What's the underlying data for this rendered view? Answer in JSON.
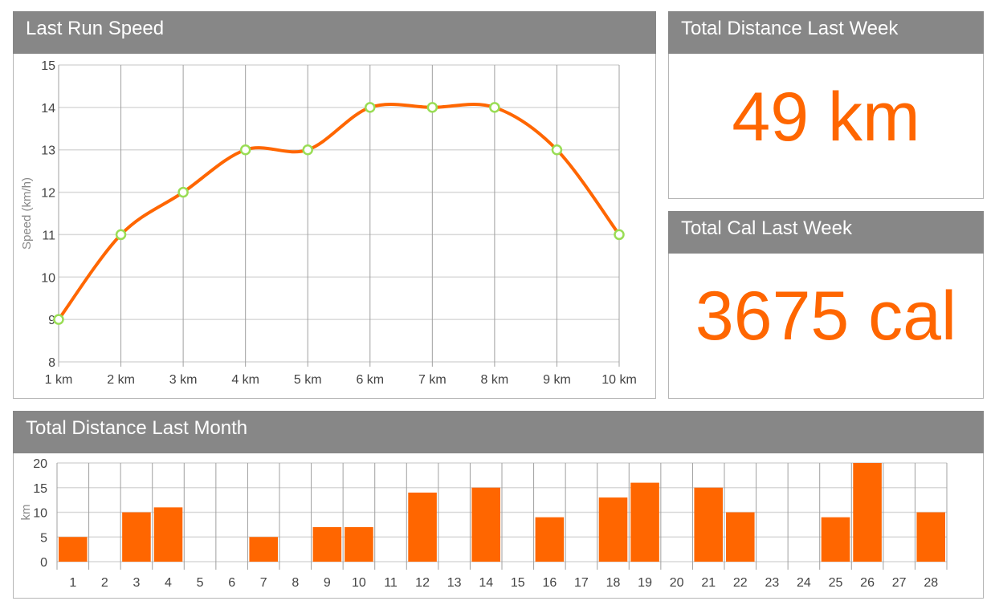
{
  "panels": {
    "speed_title": "Last Run Speed",
    "week_title": "Total Distance Last Week",
    "week_value": "49 km",
    "cal_title": "Total Cal Last Week",
    "cal_value": "3675 cal",
    "month_title": "Total Distance Last Month"
  },
  "colors": {
    "header_bg": "#878787",
    "accent": "#ff6600",
    "point_stroke": "#99dd55",
    "grid": "#d9d9d9",
    "vgrid": "#a0a0a0"
  },
  "chart_data": [
    {
      "type": "line",
      "title": "Last Run Speed",
      "categories": [
        "1 km",
        "2 km",
        "3 km",
        "4 km",
        "5 km",
        "6 km",
        "7 km",
        "8 km",
        "9 km",
        "10 km"
      ],
      "values": [
        9,
        11,
        12,
        13,
        13,
        14,
        14,
        14,
        13,
        11
      ],
      "ylabel": "Speed (km/h)",
      "xlabel": "",
      "ylim": [
        8,
        15
      ],
      "yticks": [
        8,
        9,
        10,
        11,
        12,
        13,
        14,
        15
      ],
      "smooth": true,
      "grid": true,
      "legend": "none"
    },
    {
      "type": "bar",
      "title": "Total Distance Last Month",
      "categories": [
        "1",
        "2",
        "3",
        "4",
        "5",
        "6",
        "7",
        "8",
        "9",
        "10",
        "11",
        "12",
        "13",
        "14",
        "15",
        "16",
        "17",
        "18",
        "19",
        "20",
        "21",
        "22",
        "23",
        "24",
        "25",
        "26",
        "27",
        "28"
      ],
      "values": [
        5,
        0,
        10,
        11,
        0,
        0,
        5,
        0,
        7,
        7,
        0,
        14,
        0,
        15,
        0,
        9,
        0,
        13,
        16,
        0,
        15,
        10,
        0,
        0,
        9,
        20,
        0,
        10
      ],
      "ylabel": "km",
      "xlabel": "",
      "ylim": [
        0,
        20
      ],
      "yticks": [
        0,
        5,
        10,
        15,
        20
      ],
      "grid": true,
      "legend": "none"
    }
  ]
}
